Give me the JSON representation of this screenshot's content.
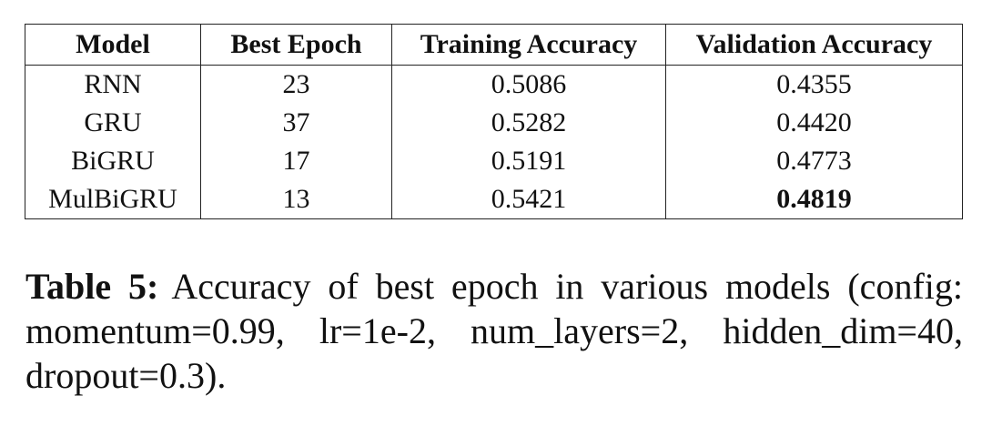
{
  "table": {
    "headers": [
      "Model",
      "Best Epoch",
      "Training Accuracy",
      "Validation Accuracy"
    ],
    "rows": [
      {
        "model": "RNN",
        "best_epoch": "23",
        "training_accuracy": "0.5086",
        "validation_accuracy": "0.4355",
        "validation_bold": false
      },
      {
        "model": "GRU",
        "best_epoch": "37",
        "training_accuracy": "0.5282",
        "validation_accuracy": "0.4420",
        "validation_bold": false
      },
      {
        "model": "BiGRU",
        "best_epoch": "17",
        "training_accuracy": "0.5191",
        "validation_accuracy": "0.4773",
        "validation_bold": false
      },
      {
        "model": "MulBiGRU",
        "best_epoch": "13",
        "training_accuracy": "0.5421",
        "validation_accuracy": "0.4819",
        "validation_bold": true
      }
    ]
  },
  "caption": {
    "label": "Table 5:",
    "text": "Accuracy of best epoch in various models (config: momentum=0.99, lr=1e-2, num_layers=2, hid­den_dim=40, dropout=0.3)."
  }
}
